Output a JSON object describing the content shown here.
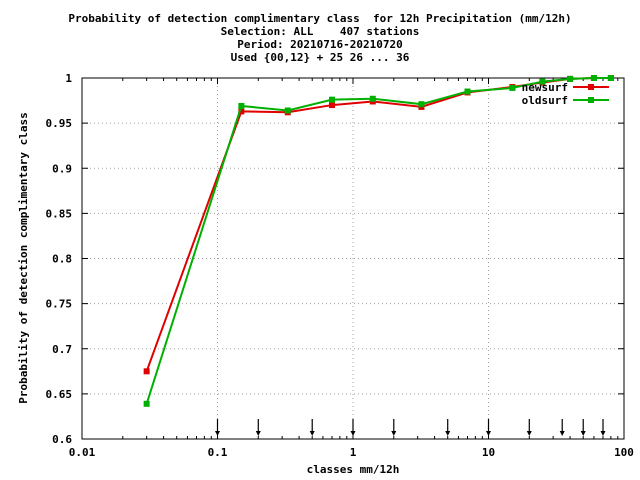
{
  "chart_data": {
    "type": "line",
    "title_lines": [
      "Probability of detection complimentary class  for 12h Precipitation (mm/12h)",
      "Selection: ALL    407 stations",
      "Period: 20210716-20210720",
      "Used {00,12} + 25 26 ... 36"
    ],
    "xlabel": "classes mm/12h",
    "ylabel": "Probability of detection complimentary class",
    "x_scale": "log",
    "xlim": [
      0.01,
      100
    ],
    "ylim": [
      0.6,
      1.0
    ],
    "x_ticks": [
      0.01,
      0.1,
      1,
      10,
      100
    ],
    "x_tick_labels": [
      "0.01",
      "0.1",
      "1",
      "10",
      "100"
    ],
    "y_ticks": [
      0.6,
      0.65,
      0.7,
      0.75,
      0.8,
      0.85,
      0.9,
      0.95,
      1.0
    ],
    "y_tick_labels": [
      "0.6",
      "0.65",
      "0.7",
      "0.75",
      "0.8",
      "0.85",
      "0.9",
      "0.95",
      "1"
    ],
    "grid": true,
    "legend_position": "top-right",
    "class_markers_x": [
      0.1,
      0.2,
      0.5,
      1,
      2,
      5,
      10,
      20,
      35,
      50,
      70
    ],
    "series": [
      {
        "name": "newsurf",
        "color": "#e00000",
        "x": [
          0.03,
          0.15,
          0.33,
          0.7,
          1.4,
          3.2,
          7,
          15,
          25,
          40,
          60,
          80
        ],
        "y": [
          0.675,
          0.963,
          0.962,
          0.97,
          0.974,
          0.968,
          0.984,
          0.99,
          0.995,
          0.999,
          1.0,
          1.0
        ]
      },
      {
        "name": "oldsurf",
        "color": "#00b000",
        "x": [
          0.03,
          0.15,
          0.33,
          0.7,
          1.4,
          3.2,
          7,
          15,
          25,
          40,
          60,
          80
        ],
        "y": [
          0.639,
          0.969,
          0.964,
          0.976,
          0.977,
          0.971,
          0.985,
          0.989,
          0.996,
          0.999,
          1.0,
          1.0
        ]
      }
    ]
  }
}
